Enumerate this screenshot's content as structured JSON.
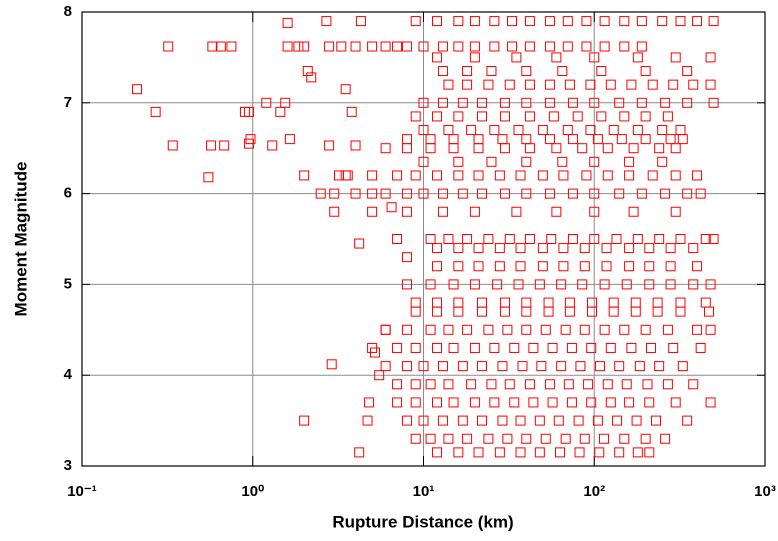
{
  "chart_data": {
    "type": "scatter",
    "xlabel": "Rupture Distance (km)",
    "ylabel": "Moment Magnitude",
    "xscale": "log",
    "grid": true,
    "color": "#ff0000",
    "xlim": [
      0.1,
      1000
    ],
    "ylim": [
      3,
      8
    ],
    "xticks": [
      {
        "value": 0.1,
        "label": "10⁻¹"
      },
      {
        "value": 1,
        "label": "10⁰"
      },
      {
        "value": 10,
        "label": "10¹"
      },
      {
        "value": 100,
        "label": "10²"
      },
      {
        "value": 1000,
        "label": "10³"
      }
    ],
    "yticks": [
      3,
      4,
      5,
      6,
      7,
      8
    ],
    "x": [
      0.21,
      0.27,
      0.32,
      0.34,
      0.55,
      0.57,
      0.58,
      0.65,
      0.68,
      0.75,
      0.9,
      0.95,
      0.97,
      0.95,
      1.2,
      1.3,
      1.45,
      1.55,
      1.6,
      1.65,
      1.6,
      1.85,
      2.0,
      2.1,
      2.2,
      2.0,
      2.0,
      2.7,
      2.8,
      2.8,
      2.9,
      3.2,
      3.3,
      3.5,
      3.6,
      3.8,
      4.0,
      4.0,
      4.2,
      4.2,
      4.3,
      4.7,
      5.2,
      5.5,
      6,
      4.8,
      7,
      8,
      6.5,
      9,
      12,
      16,
      20,
      26,
      33,
      42,
      55,
      70,
      90,
      115,
      150,
      190,
      250,
      320,
      400,
      500,
      5,
      6,
      7,
      8,
      10,
      13,
      16,
      20,
      26,
      33,
      42,
      55,
      70,
      90,
      115,
      150,
      190,
      12,
      20,
      35,
      60,
      100,
      180,
      300,
      480,
      13,
      18,
      25,
      40,
      65,
      110,
      200,
      350,
      14,
      18,
      24,
      32,
      42,
      55,
      72,
      95,
      125,
      165,
      220,
      290,
      380,
      480,
      10,
      13,
      17,
      22,
      30,
      40,
      55,
      75,
      100,
      140,
      190,
      260,
      350,
      500,
      9,
      12,
      16,
      22,
      30,
      42,
      58,
      80,
      110,
      150,
      200,
      270,
      10,
      14,
      19,
      26,
      36,
      50,
      70,
      95,
      130,
      180,
      250,
      320,
      8,
      11,
      15,
      21,
      29,
      40,
      55,
      75,
      105,
      145,
      200,
      280,
      330,
      6,
      8,
      11,
      15,
      21,
      30,
      42,
      60,
      85,
      120,
      170,
      240,
      300,
      10,
      16,
      25,
      40,
      65,
      100,
      160,
      250,
      3.5,
      5,
      7,
      9,
      12,
      16,
      21,
      28,
      37,
      50,
      66,
      90,
      120,
      160,
      220,
      300,
      400,
      2.5,
      3,
      4,
      5,
      6,
      8,
      10,
      13,
      17,
      22,
      30,
      40,
      55,
      75,
      100,
      140,
      190,
      260,
      350,
      420,
      3,
      5,
      8,
      13,
      20,
      35,
      60,
      100,
      170,
      300,
      11,
      14,
      18,
      24,
      32,
      42,
      56,
      75,
      100,
      135,
      180,
      240,
      320,
      450,
      500,
      12,
      16,
      21,
      28,
      37,
      50,
      66,
      88,
      118,
      160,
      210,
      280,
      380,
      12,
      16,
      21,
      28,
      37,
      50,
      66,
      88,
      118,
      160,
      210,
      280,
      400,
      8,
      11,
      15,
      20,
      27,
      36,
      48,
      64,
      85,
      115,
      155,
      210,
      280,
      380,
      480,
      9,
      12,
      16,
      22,
      30,
      40,
      54,
      72,
      97,
      130,
      175,
      235,
      320,
      450,
      9,
      12,
      16,
      22,
      30,
      40,
      54,
      72,
      97,
      130,
      175,
      235,
      320,
      470,
      6,
      8,
      11,
      14,
      18,
      24,
      31,
      40,
      52,
      68,
      88,
      115,
      150,
      200,
      270,
      400,
      480,
      5,
      7,
      9,
      12,
      15,
      20,
      26,
      34,
      44,
      57,
      74,
      96,
      125,
      165,
      215,
      290,
      420,
      6,
      8,
      10,
      13,
      17,
      22,
      29,
      38,
      49,
      64,
      83,
      108,
      140,
      185,
      240,
      330,
      7,
      9,
      11,
      14,
      19,
      25,
      32,
      42,
      55,
      71,
      92,
      120,
      155,
      205,
      270,
      380,
      7,
      9,
      12,
      15,
      20,
      26,
      34,
      44,
      57,
      74,
      96,
      125,
      160,
      210,
      300,
      480,
      8,
      10,
      13,
      17,
      22,
      29,
      37,
      48,
      62,
      81,
      105,
      136,
      177,
      230,
      350,
      9,
      11,
      14,
      18,
      24,
      31,
      40,
      52,
      68,
      88,
      114,
      150,
      200,
      260,
      12,
      16,
      21,
      28,
      37,
      48,
      63,
      82,
      107,
      140,
      180,
      210
    ],
    "y": [
      7.15,
      6.9,
      7.62,
      6.53,
      6.18,
      6.53,
      7.62,
      7.62,
      6.53,
      7.62,
      6.9,
      6.55,
      6.6,
      6.9,
      7.0,
      6.53,
      6.9,
      7.0,
      7.88,
      6.6,
      7.62,
      7.62,
      6.2,
      7.35,
      7.28,
      3.5,
      7.62,
      7.9,
      6.53,
      7.62,
      4.12,
      6.2,
      7.62,
      7.15,
      6.2,
      6.9,
      7.62,
      6.53,
      3.15,
      5.45,
      7.9,
      3.5,
      4.25,
      4.0,
      4.5,
      3.7,
      5.5,
      5.3,
      5.85,
      7.9,
      7.9,
      7.9,
      7.9,
      7.9,
      7.9,
      7.9,
      7.9,
      7.9,
      7.9,
      7.9,
      7.9,
      7.9,
      7.9,
      7.9,
      7.9,
      7.9,
      7.62,
      7.62,
      7.62,
      7.62,
      7.62,
      7.62,
      7.62,
      7.62,
      7.62,
      7.62,
      7.62,
      7.62,
      7.62,
      7.62,
      7.62,
      7.62,
      7.62,
      7.5,
      7.5,
      7.5,
      7.5,
      7.5,
      7.5,
      7.5,
      7.5,
      7.35,
      7.35,
      7.35,
      7.35,
      7.35,
      7.35,
      7.35,
      7.35,
      7.2,
      7.2,
      7.2,
      7.2,
      7.2,
      7.2,
      7.2,
      7.2,
      7.2,
      7.2,
      7.2,
      7.2,
      7.2,
      7.2,
      7.0,
      7.0,
      7.0,
      7.0,
      7.0,
      7.0,
      7.0,
      7.0,
      7.0,
      7.0,
      7.0,
      7.0,
      7.0,
      7.0,
      6.85,
      6.85,
      6.85,
      6.85,
      6.85,
      6.85,
      6.85,
      6.85,
      6.85,
      6.85,
      6.85,
      6.85,
      6.7,
      6.7,
      6.7,
      6.7,
      6.7,
      6.7,
      6.7,
      6.7,
      6.7,
      6.7,
      6.7,
      6.7,
      6.6,
      6.6,
      6.6,
      6.6,
      6.6,
      6.6,
      6.6,
      6.6,
      6.6,
      6.6,
      6.6,
      6.6,
      6.6,
      6.5,
      6.5,
      6.5,
      6.5,
      6.5,
      6.5,
      6.5,
      6.5,
      6.5,
      6.5,
      6.5,
      6.5,
      6.5,
      6.35,
      6.35,
      6.35,
      6.35,
      6.35,
      6.35,
      6.35,
      6.35,
      6.2,
      6.2,
      6.2,
      6.2,
      6.2,
      6.2,
      6.2,
      6.2,
      6.2,
      6.2,
      6.2,
      6.2,
      6.2,
      6.2,
      6.2,
      6.2,
      6.2,
      6.0,
      6.0,
      6.0,
      6.0,
      6.0,
      6.0,
      6.0,
      6.0,
      6.0,
      6.0,
      6.0,
      6.0,
      6.0,
      6.0,
      6.0,
      6.0,
      6.0,
      6.0,
      6.0,
      6.0,
      5.8,
      5.8,
      5.8,
      5.8,
      5.8,
      5.8,
      5.8,
      5.8,
      5.8,
      5.8,
      5.5,
      5.5,
      5.5,
      5.5,
      5.5,
      5.5,
      5.5,
      5.5,
      5.5,
      5.5,
      5.5,
      5.5,
      5.5,
      5.5,
      5.5,
      5.4,
      5.4,
      5.4,
      5.4,
      5.4,
      5.4,
      5.4,
      5.4,
      5.4,
      5.4,
      5.4,
      5.4,
      5.4,
      5.2,
      5.2,
      5.2,
      5.2,
      5.2,
      5.2,
      5.2,
      5.2,
      5.2,
      5.2,
      5.2,
      5.2,
      5.2,
      5.0,
      5.0,
      5.0,
      5.0,
      5.0,
      5.0,
      5.0,
      5.0,
      5.0,
      5.0,
      5.0,
      5.0,
      5.0,
      5.0,
      5.0,
      4.8,
      4.8,
      4.8,
      4.8,
      4.8,
      4.8,
      4.8,
      4.8,
      4.8,
      4.8,
      4.8,
      4.8,
      4.8,
      4.8,
      4.7,
      4.7,
      4.7,
      4.7,
      4.7,
      4.7,
      4.7,
      4.7,
      4.7,
      4.7,
      4.7,
      4.7,
      4.7,
      4.7,
      4.5,
      4.5,
      4.5,
      4.5,
      4.5,
      4.5,
      4.5,
      4.5,
      4.5,
      4.5,
      4.5,
      4.5,
      4.5,
      4.5,
      4.5,
      4.5,
      4.5,
      4.3,
      4.3,
      4.3,
      4.3,
      4.3,
      4.3,
      4.3,
      4.3,
      4.3,
      4.3,
      4.3,
      4.3,
      4.3,
      4.3,
      4.3,
      4.3,
      4.3,
      4.1,
      4.1,
      4.1,
      4.1,
      4.1,
      4.1,
      4.1,
      4.1,
      4.1,
      4.1,
      4.1,
      4.1,
      4.1,
      4.1,
      4.1,
      4.1,
      3.9,
      3.9,
      3.9,
      3.9,
      3.9,
      3.9,
      3.9,
      3.9,
      3.9,
      3.9,
      3.9,
      3.9,
      3.9,
      3.9,
      3.9,
      3.9,
      3.7,
      3.7,
      3.7,
      3.7,
      3.7,
      3.7,
      3.7,
      3.7,
      3.7,
      3.7,
      3.7,
      3.7,
      3.7,
      3.7,
      3.7,
      3.7,
      3.5,
      3.5,
      3.5,
      3.5,
      3.5,
      3.5,
      3.5,
      3.5,
      3.5,
      3.5,
      3.5,
      3.5,
      3.5,
      3.5,
      3.5,
      3.3,
      3.3,
      3.3,
      3.3,
      3.3,
      3.3,
      3.3,
      3.3,
      3.3,
      3.3,
      3.3,
      3.3,
      3.3,
      3.3,
      3.15,
      3.15,
      3.15,
      3.15,
      3.15,
      3.15,
      3.15,
      3.15,
      3.15,
      3.15,
      3.15,
      3.15
    ]
  }
}
